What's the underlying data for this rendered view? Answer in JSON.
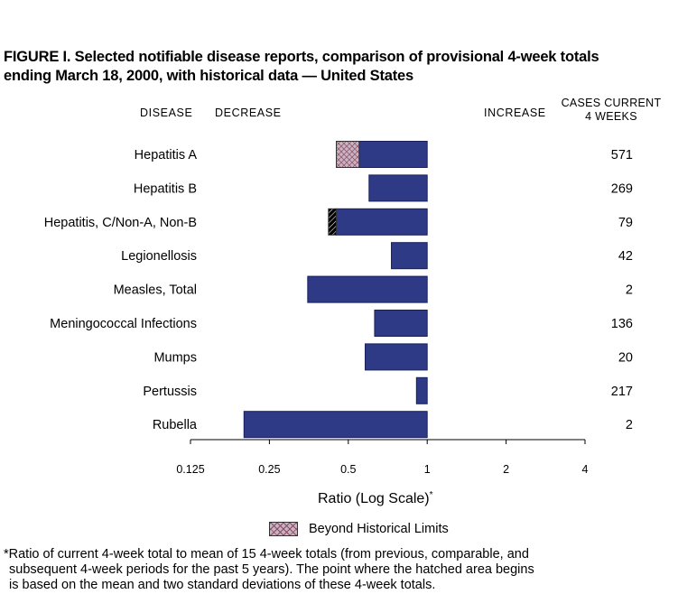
{
  "title": {
    "line1": "FIGURE I. Selected notifiable disease reports, comparison of provisional 4-week totals",
    "line2": "ending March 18, 2000, with historical data — United States"
  },
  "headers": {
    "disease": "DISEASE",
    "decrease": "DECREASE",
    "increase": "INCREASE",
    "cases_line1": "CASES CURRENT",
    "cases_line2": "4 WEEKS"
  },
  "chart_data": {
    "type": "bar",
    "orientation": "horizontal",
    "scale": "log2",
    "xlim": [
      0.125,
      4
    ],
    "xticks": [
      "0.125",
      "0.25",
      "0.5",
      "1",
      "2",
      "4"
    ],
    "xtick_values": [
      0.125,
      0.25,
      0.5,
      1,
      2,
      4
    ],
    "xlabel": "Ratio (Log Scale)",
    "xlabel_marker": "*",
    "categories": [
      "Hepatitis A",
      "Hepatitis B",
      "Hepatitis, C/Non-A, Non-B",
      "Legionellosis",
      "Measles, Total",
      "Meningococcal Infections",
      "Mumps",
      "Pertussis",
      "Rubella"
    ],
    "ratios": [
      0.45,
      0.6,
      0.42,
      0.73,
      0.35,
      0.63,
      0.58,
      0.91,
      0.2
    ],
    "historical_limit": [
      0.55,
      null,
      0.45,
      null,
      null,
      null,
      null,
      null,
      null
    ],
    "cases_current_4_weeks": [
      "571",
      "269",
      "79",
      "42",
      "2",
      "136",
      "20",
      "217",
      "2"
    ],
    "colors": {
      "bar": "#2e3a85",
      "bar_edge": "#1a1f5c",
      "beyond_limits": "#c9b3be",
      "hatch": "#8a4a6a"
    },
    "legend": {
      "label": "Beyond Historical Limits",
      "placement": "bottom-center"
    }
  },
  "footnote": {
    "line1": "*Ratio of current 4-week total to mean of 15 4-week totals (from previous, comparable, and",
    "line2": "subsequent 4-week periods for the past 5 years). The point where the hatched area begins",
    "line3": "is based on the mean and two standard deviations of these 4-week totals."
  }
}
